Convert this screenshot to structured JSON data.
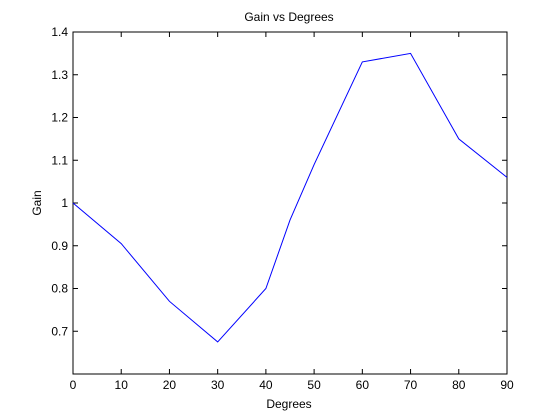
{
  "chart_data": {
    "type": "line",
    "title": "Gain vs Degrees",
    "xlabel": "Degrees",
    "ylabel": "Gain",
    "xlim": [
      0,
      90
    ],
    "ylim": [
      0.6,
      1.4
    ],
    "xticks": [
      0,
      10,
      20,
      30,
      40,
      50,
      60,
      70,
      80,
      90
    ],
    "yticks": [
      0.7,
      0.8,
      0.9,
      1,
      1.1,
      1.2,
      1.3,
      1.4
    ],
    "xtick_labels": [
      "0",
      "10",
      "20",
      "30",
      "40",
      "50",
      "60",
      "70",
      "80",
      "90"
    ],
    "ytick_labels": [
      "0.7",
      "0.8",
      "0.9",
      "1",
      "1.1",
      "1.2",
      "1.3",
      "1.4"
    ],
    "grid": false,
    "series": [
      {
        "x": [
          0,
          10,
          20,
          30,
          40,
          45,
          50,
          60,
          70,
          80,
          90
        ],
        "y": [
          1.0,
          0.905,
          0.77,
          0.675,
          0.8,
          0.96,
          1.09,
          1.33,
          1.35,
          1.15,
          1.06
        ],
        "color": "#0000ff"
      }
    ]
  }
}
